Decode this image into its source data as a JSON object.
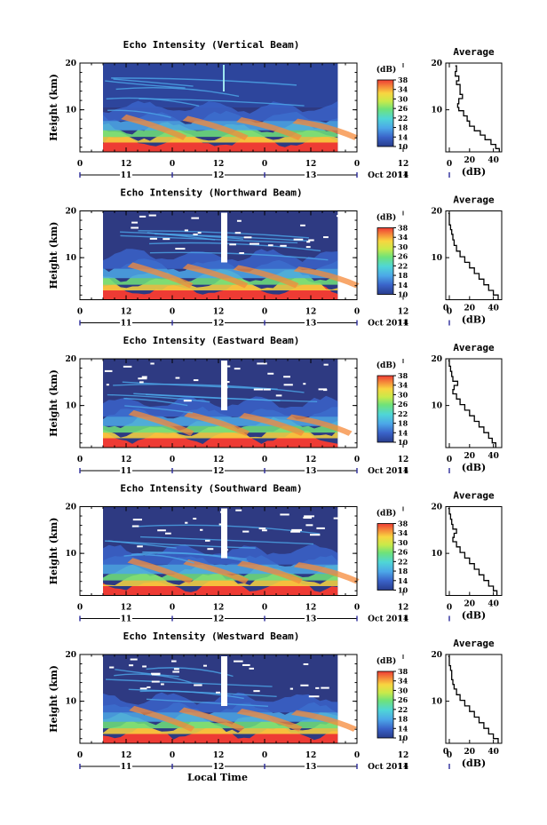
{
  "figure": {
    "xlabel": "Local Time",
    "date_label": "Oct 2011"
  },
  "colorbar": {
    "unit": "(dB)",
    "ticks": [
      "10",
      "14",
      "18",
      "22",
      "26",
      "30",
      "34",
      "38"
    ],
    "colors": [
      "#283c8c",
      "#3a63c9",
      "#4ca8e8",
      "#4fd6d6",
      "#6ee27a",
      "#c9ea4a",
      "#f8d640",
      "#f58a3a",
      "#ee3b34"
    ]
  },
  "chart_data": [
    {
      "type": "heatmap",
      "title": "Echo Intensity (Vertical Beam)",
      "ylabel": "Height (km)",
      "ylim": [
        1,
        20
      ],
      "yticks": [
        "10",
        "20"
      ],
      "xticks_top": [
        "0",
        "12",
        "0",
        "12",
        "0",
        "12",
        "0",
        "12",
        "0"
      ],
      "xticks_days": [
        "11",
        "12",
        "13",
        "14"
      ],
      "zlim": [
        10,
        38
      ],
      "time_coverage_hours": [
        -18,
        43
      ],
      "average_profile": {
        "title": "Average",
        "xlabel": "(dB)",
        "xticks": [
          "20",
          "40"
        ],
        "xlim": [
          0,
          47
        ],
        "height_km": [
          1,
          1.7,
          2.6,
          3.6,
          4.6,
          5.5,
          6.5,
          7.6,
          8.7,
          9.8,
          10.5,
          11.3,
          12.4,
          13.3,
          14.4,
          15.4,
          16.2,
          17.2,
          18.2,
          19.4
        ],
        "intensity_db": [
          45,
          42,
          38,
          33,
          29,
          24,
          20,
          18,
          15,
          11,
          10,
          11,
          14,
          12,
          12,
          9,
          11,
          8,
          9,
          8
        ]
      }
    },
    {
      "type": "heatmap",
      "title": "Echo Intensity (Northward Beam)",
      "ylabel": "Height (km)",
      "ylim": [
        1,
        20
      ],
      "yticks": [
        "10",
        "20"
      ],
      "xticks_top": [
        "0",
        "12",
        "0",
        "12",
        "0",
        "12",
        "0",
        "12",
        "0"
      ],
      "xticks_days": [
        "11",
        "12",
        "13",
        "14"
      ],
      "zlim": [
        10,
        38
      ],
      "time_coverage_hours": [
        -18,
        43
      ],
      "average_profile": {
        "title": "Average",
        "xlabel": "(dB)",
        "xticks": [
          "0",
          "20",
          "40"
        ],
        "xlim": [
          0,
          47
        ],
        "height_km": [
          1,
          2,
          3,
          4.2,
          5.4,
          6.6,
          7.8,
          9,
          10.2,
          11.4,
          12.6,
          13.8,
          15,
          16,
          17,
          18,
          19.5
        ],
        "intensity_db": [
          44,
          40,
          36,
          32,
          28,
          24,
          20,
          16,
          12,
          9,
          7,
          6,
          5,
          4,
          3,
          3,
          2
        ]
      }
    },
    {
      "type": "heatmap",
      "title": "Echo Intensity (Eastward Beam)",
      "ylabel": "Height (km)",
      "ylim": [
        1,
        20
      ],
      "yticks": [
        "10",
        "20"
      ],
      "xticks_top": [
        "0",
        "12",
        "0",
        "12",
        "0",
        "12",
        "0",
        "12",
        "0"
      ],
      "xticks_days": [
        "11",
        "12",
        "13",
        "14"
      ],
      "zlim": [
        10,
        38
      ],
      "time_coverage_hours": [
        -18,
        43
      ],
      "average_profile": {
        "title": "Average",
        "xlabel": "(dB)",
        "xticks": [
          "20",
          "40"
        ],
        "xlim": [
          0,
          47
        ],
        "height_km": [
          1,
          2,
          3,
          4.2,
          5.4,
          6.6,
          7.8,
          9,
          10.2,
          11.4,
          12.5,
          13.4,
          14.3,
          15.2,
          16.2,
          17.3,
          18.4,
          19.6
        ],
        "intensity_db": [
          42,
          39,
          36,
          32,
          28,
          24,
          20,
          16,
          12,
          9,
          6,
          7,
          10,
          6,
          5,
          4,
          3,
          2
        ]
      }
    },
    {
      "type": "heatmap",
      "title": "Echo Intensity (Southward Beam)",
      "ylabel": "Height (km)",
      "ylim": [
        1,
        20
      ],
      "yticks": [
        "10",
        "20"
      ],
      "xticks_top": [
        "0",
        "12",
        "0",
        "12",
        "0",
        "12",
        "0",
        "12",
        "0"
      ],
      "xticks_days": [
        "11",
        "12",
        "13",
        "14"
      ],
      "zlim": [
        10,
        38
      ],
      "time_coverage_hours": [
        -18,
        43
      ],
      "average_profile": {
        "title": "Average",
        "xlabel": "(dB)",
        "xticks": [
          "20",
          "40"
        ],
        "xlim": [
          0,
          47
        ],
        "height_km": [
          1,
          2,
          3,
          4.2,
          5.4,
          6.6,
          7.8,
          9,
          10.2,
          11.4,
          12.5,
          13.4,
          14.3,
          15.2,
          16.2,
          17.3,
          18.4,
          19.6
        ],
        "intensity_db": [
          43,
          40,
          36,
          32,
          28,
          24,
          20,
          16,
          12,
          9,
          6,
          7,
          9,
          6,
          5,
          4,
          3,
          2
        ]
      }
    },
    {
      "type": "heatmap",
      "title": "Echo Intensity (Westward Beam)",
      "ylabel": "Height (km)",
      "ylim": [
        1,
        20
      ],
      "yticks": [
        "10",
        "20"
      ],
      "xticks_top": [
        "0",
        "12",
        "0",
        "12",
        "0",
        "12",
        "0",
        "12",
        "0"
      ],
      "xticks_days": [
        "11",
        "12",
        "13",
        "14"
      ],
      "zlim": [
        10,
        38
      ],
      "time_coverage_hours": [
        -18,
        43
      ],
      "average_profile": {
        "title": "Average",
        "xlabel": "(dB)",
        "xticks": [
          "0",
          "20",
          "40"
        ],
        "xlim": [
          0,
          47
        ],
        "height_km": [
          1,
          2,
          3,
          4.2,
          5.4,
          6.6,
          7.8,
          9,
          10.2,
          11.4,
          12.6,
          13.6,
          14.6,
          15.6,
          16.6,
          17.6,
          18.6,
          19.6
        ],
        "intensity_db": [
          44,
          40,
          36,
          32,
          28,
          24,
          20,
          16,
          12,
          9,
          7,
          6,
          5,
          5,
          4,
          3,
          3,
          2
        ]
      }
    }
  ]
}
